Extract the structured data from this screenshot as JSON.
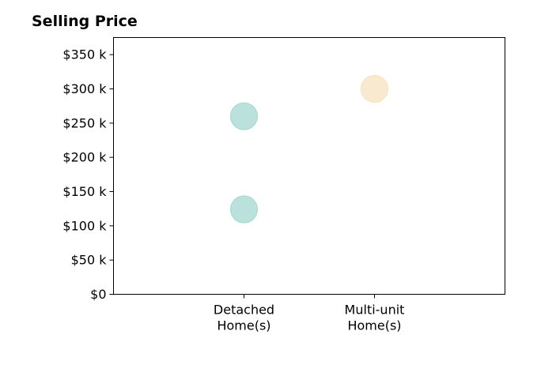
{
  "chart_data": {
    "type": "scatter",
    "title": "Selling Price",
    "xlabel": "",
    "ylabel": "",
    "categories": [
      "Detached\nHome(s)",
      "Multi-unit\nHome(s)"
    ],
    "points": [
      {
        "category": "Detached\nHome(s)",
        "y": 260000,
        "color": "#aad9d4"
      },
      {
        "category": "Detached\nHome(s)",
        "y": 124000,
        "color": "#aad9d4"
      },
      {
        "category": "Multi-unit\nHome(s)",
        "y": 300000,
        "color": "#f6e4c3"
      }
    ],
    "yticks": [
      0,
      50000,
      100000,
      150000,
      200000,
      250000,
      300000,
      350000
    ],
    "ytick_labels": [
      "$0",
      "$50 k",
      "$100 k",
      "$150 k",
      "$200 k",
      "$250 k",
      "$300 k",
      "$350 k"
    ],
    "ylim": [
      0,
      375000
    ],
    "grid": false,
    "legend": "none"
  }
}
